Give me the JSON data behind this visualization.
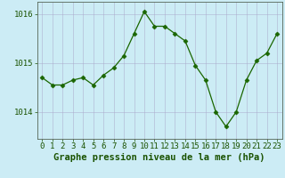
{
  "x": [
    0,
    1,
    2,
    3,
    4,
    5,
    6,
    7,
    8,
    9,
    10,
    11,
    12,
    13,
    14,
    15,
    16,
    17,
    18,
    19,
    20,
    21,
    22,
    23
  ],
  "y": [
    1014.7,
    1014.55,
    1014.55,
    1014.65,
    1014.7,
    1014.55,
    1014.75,
    1014.9,
    1015.15,
    1015.6,
    1016.05,
    1015.75,
    1015.75,
    1015.6,
    1015.45,
    1014.95,
    1014.65,
    1014.0,
    1013.7,
    1014.0,
    1014.65,
    1015.05,
    1015.2,
    1015.6
  ],
  "line_color": "#1a6600",
  "marker": "D",
  "marker_size": 2.5,
  "bg_color": "#ccecf5",
  "grid_color": "#aaaacc",
  "xlabel": "Graphe pression niveau de la mer (hPa)",
  "ylim": [
    1013.45,
    1016.25
  ],
  "yticks": [
    1014,
    1015,
    1016
  ],
  "xticks": [
    0,
    1,
    2,
    3,
    4,
    5,
    6,
    7,
    8,
    9,
    10,
    11,
    12,
    13,
    14,
    15,
    16,
    17,
    18,
    19,
    20,
    21,
    22,
    23
  ],
  "xlabel_fontsize": 7.5,
  "tick_fontsize": 6.5,
  "text_color": "#1a5200"
}
